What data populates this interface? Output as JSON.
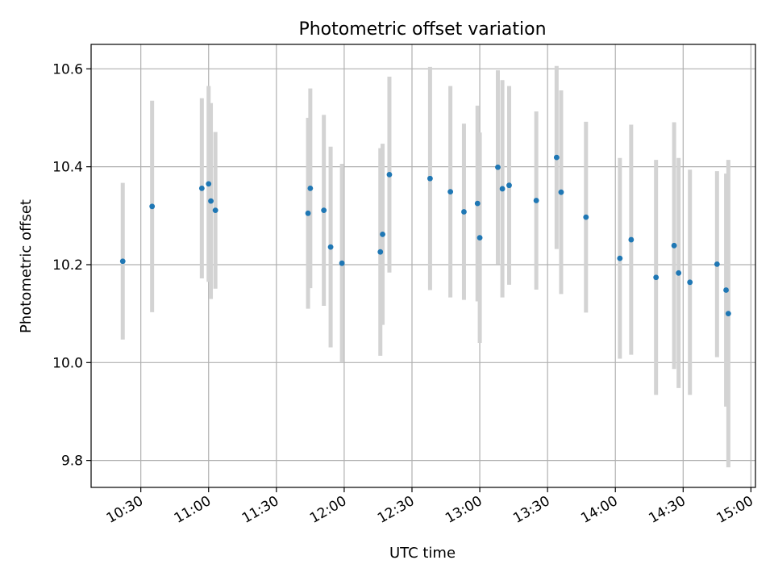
{
  "chart_data": {
    "type": "scatter",
    "title": "Photometric offset variation",
    "xlabel": "UTC time",
    "ylabel": "Photometric offset",
    "xlim": [
      "10:08",
      "15:02"
    ],
    "ylim": [
      9.745,
      10.65
    ],
    "x_ticks": [
      "10:30",
      "11:00",
      "11:30",
      "12:00",
      "12:30",
      "13:00",
      "13:30",
      "14:00",
      "14:30",
      "15:00"
    ],
    "y_ticks": [
      9.8,
      10.0,
      10.2,
      10.4,
      10.6
    ],
    "y_tick_labels": [
      "9.8",
      "10.0",
      "10.2",
      "10.4",
      "10.6"
    ],
    "grid": true,
    "colors": {
      "point": "#1f77b4",
      "errorbar": "#d3d3d3",
      "grid": "#b0b0b0"
    },
    "series": [
      {
        "points": [
          {
            "t": "10:22",
            "y": 10.207,
            "err": 0.16
          },
          {
            "t": "10:35",
            "y": 10.319,
            "err": 0.216
          },
          {
            "t": "10:57",
            "y": 10.356,
            "err": 0.184
          },
          {
            "t": "11:00",
            "y": 10.365,
            "err": 0.2
          },
          {
            "t": "11:01",
            "y": 10.33,
            "err": 0.2
          },
          {
            "t": "11:03",
            "y": 10.311,
            "err": 0.16
          },
          {
            "t": "11:44",
            "y": 10.305,
            "err": 0.195
          },
          {
            "t": "11:45",
            "y": 10.356,
            "err": 0.204
          },
          {
            "t": "11:51",
            "y": 10.311,
            "err": 0.195
          },
          {
            "t": "11:54",
            "y": 10.236,
            "err": 0.205
          },
          {
            "t": "11:59",
            "y": 10.203,
            "err": 0.203
          },
          {
            "t": "12:16",
            "y": 10.226,
            "err": 0.212
          },
          {
            "t": "12:17",
            "y": 10.262,
            "err": 0.185
          },
          {
            "t": "12:20",
            "y": 10.384,
            "err": 0.2
          },
          {
            "t": "12:38",
            "y": 10.376,
            "err": 0.228
          },
          {
            "t": "12:47",
            "y": 10.349,
            "err": 0.216
          },
          {
            "t": "12:53",
            "y": 10.308,
            "err": 0.18
          },
          {
            "t": "12:59",
            "y": 10.325,
            "err": 0.2
          },
          {
            "t": "13:00",
            "y": 10.255,
            "err": 0.215
          },
          {
            "t": "13:08",
            "y": 10.399,
            "err": 0.198
          },
          {
            "t": "13:10",
            "y": 10.355,
            "err": 0.222
          },
          {
            "t": "13:13",
            "y": 10.362,
            "err": 0.203
          },
          {
            "t": "13:25",
            "y": 10.331,
            "err": 0.182
          },
          {
            "t": "13:34",
            "y": 10.419,
            "err": 0.187
          },
          {
            "t": "13:36",
            "y": 10.348,
            "err": 0.208
          },
          {
            "t": "13:47",
            "y": 10.297,
            "err": 0.195
          },
          {
            "t": "14:02",
            "y": 10.213,
            "err": 0.205
          },
          {
            "t": "14:07",
            "y": 10.251,
            "err": 0.235
          },
          {
            "t": "14:18",
            "y": 10.174,
            "err": 0.24
          },
          {
            "t": "14:26",
            "y": 10.239,
            "err": 0.252
          },
          {
            "t": "14:28",
            "y": 10.183,
            "err": 0.235
          },
          {
            "t": "14:33",
            "y": 10.164,
            "err": 0.23
          },
          {
            "t": "14:45",
            "y": 10.201,
            "err": 0.19
          },
          {
            "t": "14:49",
            "y": 10.148,
            "err": 0.238
          },
          {
            "t": "14:50",
            "y": 10.1,
            "err": 0.314
          }
        ]
      }
    ]
  }
}
